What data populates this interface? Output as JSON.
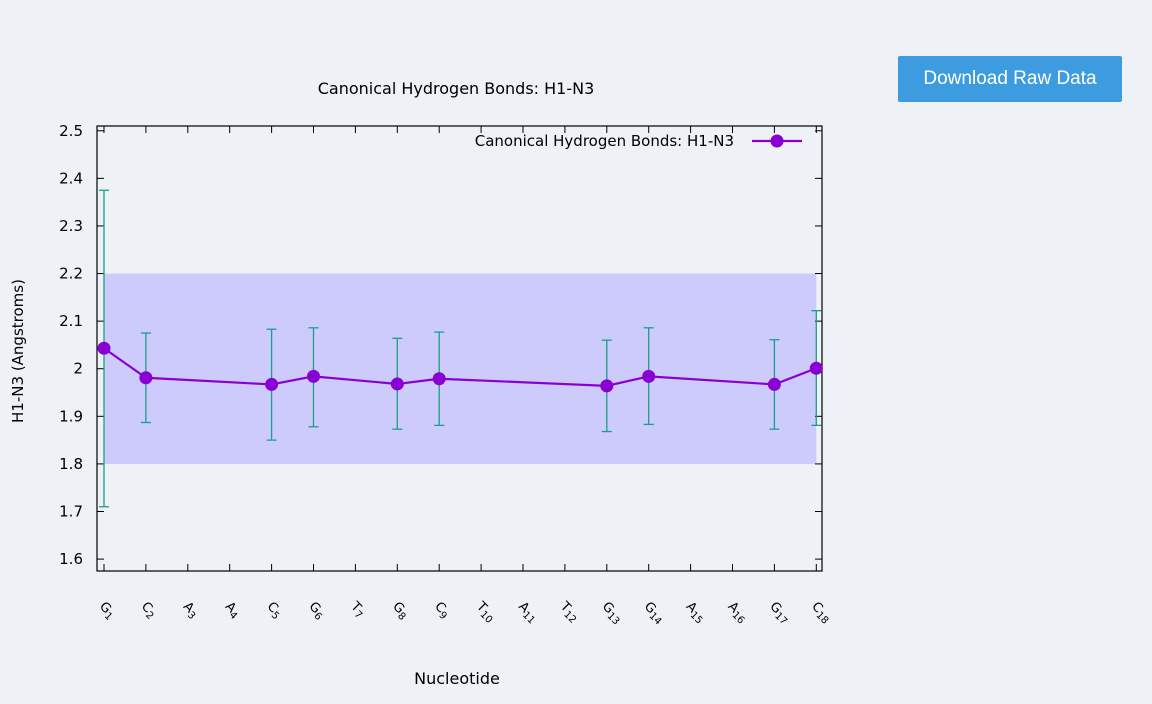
{
  "download_button": {
    "label": "Download Raw Data"
  },
  "colors": {
    "series": "#8a00d4",
    "error_bar": "#1a9e8c",
    "band": "#cccbfb",
    "button": "#3d9ce0"
  },
  "chart_data": {
    "type": "line",
    "title": "Canonical Hydrogen Bonds: H1-N3",
    "xlabel": "Nucleotide",
    "ylabel": "H1-N3 (Angstroms)",
    "ylim": [
      1.575,
      2.51
    ],
    "yticks": [
      1.6,
      1.7,
      1.8,
      1.9,
      2.0,
      2.1,
      2.2,
      2.3,
      2.4,
      2.5
    ],
    "ytick_labels": [
      "1.6",
      "1.7",
      "1.8",
      "1.9",
      "2",
      "2.1",
      "2.2",
      "2.3",
      "2.4",
      "2.5"
    ],
    "categories": [
      "G1",
      "C2",
      "A3",
      "A4",
      "C5",
      "G6",
      "T7",
      "G8",
      "C9",
      "T10",
      "A11",
      "T12",
      "G13",
      "G14",
      "A15",
      "A16",
      "G17",
      "C18"
    ],
    "category_labels": [
      {
        "base": "G",
        "num": "1"
      },
      {
        "base": "C",
        "num": "2"
      },
      {
        "base": "A",
        "num": "3"
      },
      {
        "base": "A",
        "num": "4"
      },
      {
        "base": "C",
        "num": "5"
      },
      {
        "base": "G",
        "num": "6"
      },
      {
        "base": "T",
        "num": "7"
      },
      {
        "base": "G",
        "num": "8"
      },
      {
        "base": "C",
        "num": "9"
      },
      {
        "base": "T",
        "num": "10"
      },
      {
        "base": "A",
        "num": "11"
      },
      {
        "base": "T",
        "num": "12"
      },
      {
        "base": "G",
        "num": "13"
      },
      {
        "base": "G",
        "num": "14"
      },
      {
        "base": "A",
        "num": "15"
      },
      {
        "base": "A",
        "num": "16"
      },
      {
        "base": "G",
        "num": "17"
      },
      {
        "base": "C",
        "num": "18"
      }
    ],
    "band": [
      1.8,
      2.2
    ],
    "grid": false,
    "legend_position": "top-right",
    "series": [
      {
        "name": "Canonical Hydrogen Bonds: H1-N3",
        "points": [
          {
            "category": "G1",
            "x": 1,
            "y": 2.043,
            "err_low": 1.71,
            "err_high": 2.375
          },
          {
            "category": "C2",
            "x": 2,
            "y": 1.981,
            "err_low": 1.887,
            "err_high": 2.075
          },
          {
            "category": "C5",
            "x": 5,
            "y": 1.967,
            "err_low": 1.85,
            "err_high": 2.083
          },
          {
            "category": "G6",
            "x": 6,
            "y": 1.984,
            "err_low": 1.878,
            "err_high": 2.086
          },
          {
            "category": "G8",
            "x": 8,
            "y": 1.968,
            "err_low": 1.873,
            "err_high": 2.064
          },
          {
            "category": "C9",
            "x": 9,
            "y": 1.979,
            "err_low": 1.881,
            "err_high": 2.077
          },
          {
            "category": "G13",
            "x": 13,
            "y": 1.964,
            "err_low": 1.868,
            "err_high": 2.06
          },
          {
            "category": "G14",
            "x": 14,
            "y": 1.984,
            "err_low": 1.883,
            "err_high": 2.086
          },
          {
            "category": "G17",
            "x": 17,
            "y": 1.967,
            "err_low": 1.873,
            "err_high": 2.061
          },
          {
            "category": "C18",
            "x": 18,
            "y": 2.001,
            "err_low": 1.881,
            "err_high": 2.122
          }
        ]
      }
    ]
  }
}
